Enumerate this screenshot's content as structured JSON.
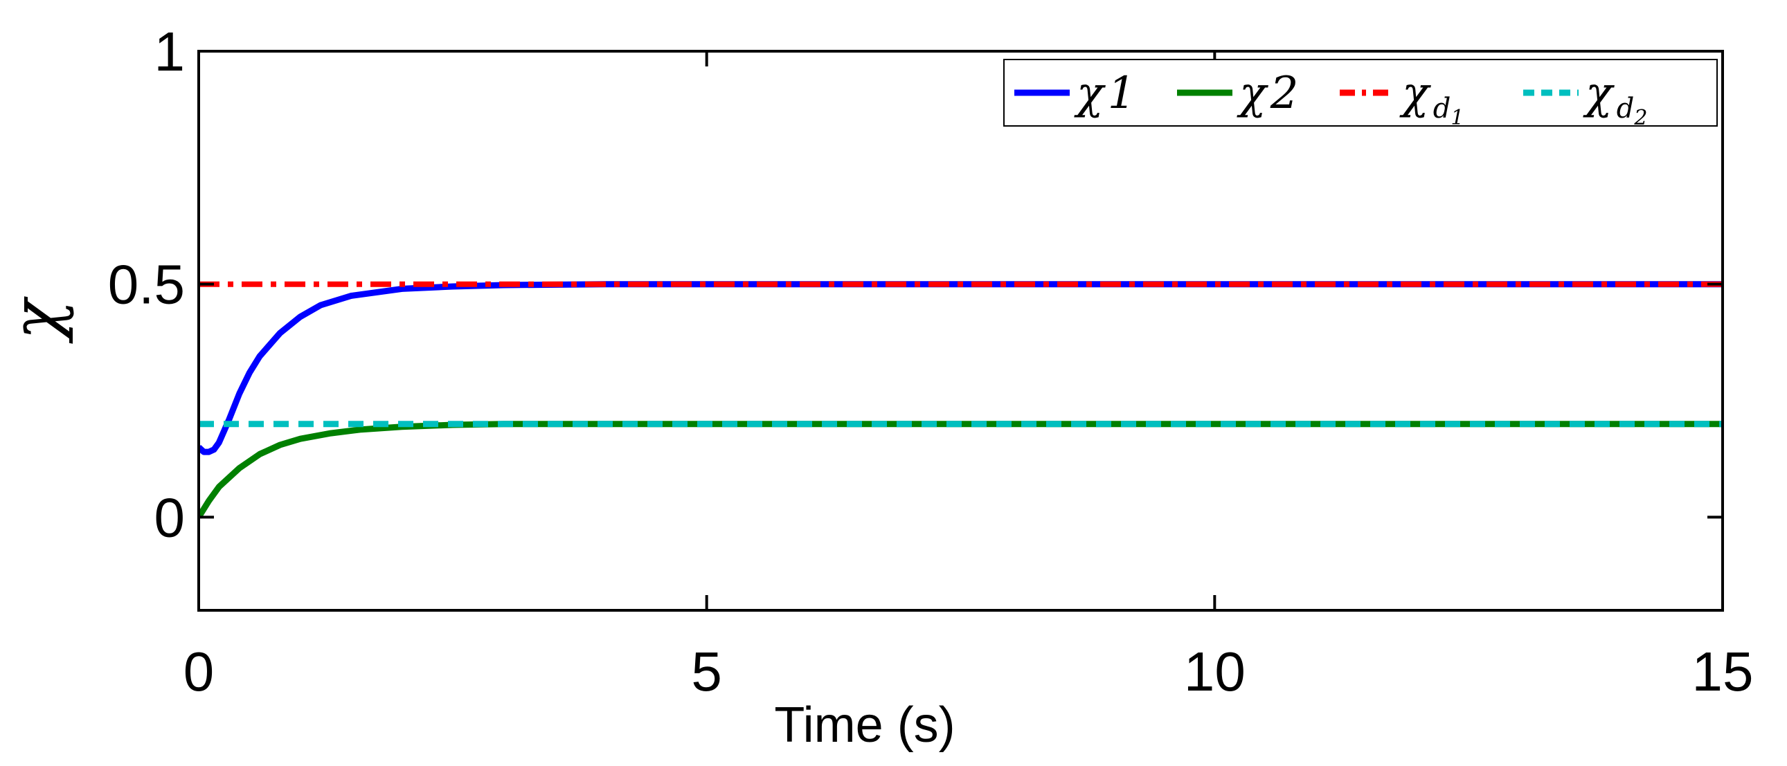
{
  "chart_data": {
    "type": "line",
    "xlabel": "Time (s)",
    "ylabel": "χ",
    "xlim": [
      0,
      15
    ],
    "ylim": [
      -0.2,
      1
    ],
    "xticks": [
      "0",
      "5",
      "10",
      "15"
    ],
    "yticks": [
      "0",
      "0.5",
      "1"
    ],
    "grid": false,
    "legend_position": "top-right",
    "series": [
      {
        "name": "χ1",
        "color": "#0000ff",
        "style": "solid",
        "x": [
          0,
          0.05,
          0.1,
          0.15,
          0.2,
          0.3,
          0.4,
          0.5,
          0.6,
          0.8,
          1.0,
          1.2,
          1.5,
          2.0,
          2.5,
          3.0,
          4.0,
          5.0,
          7.5,
          10,
          12.5,
          15
        ],
        "y": [
          0.15,
          0.14,
          0.14,
          0.145,
          0.16,
          0.21,
          0.265,
          0.31,
          0.345,
          0.395,
          0.43,
          0.455,
          0.475,
          0.49,
          0.495,
          0.498,
          0.5,
          0.5,
          0.5,
          0.5,
          0.5,
          0.5
        ]
      },
      {
        "name": "χ2",
        "color": "#008000",
        "style": "solid",
        "x": [
          0,
          0.1,
          0.2,
          0.4,
          0.6,
          0.8,
          1.0,
          1.3,
          1.6,
          2.0,
          2.5,
          3.0,
          4.0,
          5.0,
          7.5,
          10,
          12.5,
          15
        ],
        "y": [
          0.0,
          0.035,
          0.065,
          0.105,
          0.135,
          0.155,
          0.168,
          0.18,
          0.188,
          0.194,
          0.198,
          0.2,
          0.2,
          0.2,
          0.2,
          0.2,
          0.2,
          0.2
        ]
      },
      {
        "name": "χd1",
        "color": "#ff0000",
        "style": "dashdot",
        "x": [
          0,
          15
        ],
        "y": [
          0.5,
          0.5
        ]
      },
      {
        "name": "χd2",
        "color": "#00bfbf",
        "style": "dashed",
        "x": [
          0,
          15
        ],
        "y": [
          0.2,
          0.2
        ]
      }
    ],
    "legend": {
      "entries": [
        {
          "base": "χ",
          "sub": "1",
          "subsub": ""
        },
        {
          "base": "χ",
          "sub": "2",
          "subsub": ""
        },
        {
          "base": "χ",
          "sub": "d",
          "subsub": "1"
        },
        {
          "base": "χ",
          "sub": "d",
          "subsub": "2"
        }
      ]
    }
  }
}
